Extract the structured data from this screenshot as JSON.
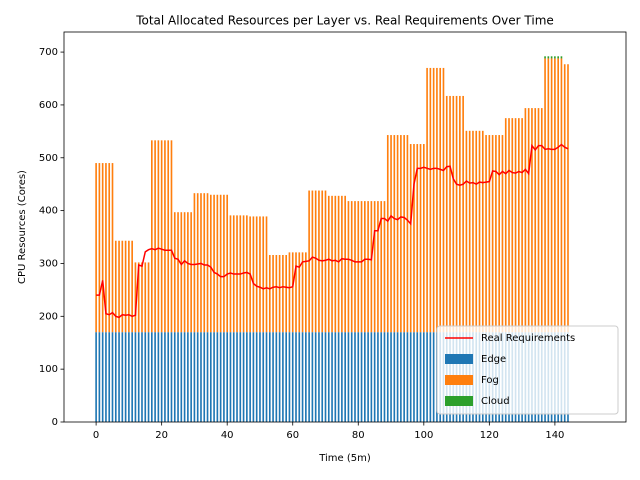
{
  "chart_data": {
    "type": "bar",
    "stacked": true,
    "title": "Total Allocated Resources per Layer vs. Real Requirements Over Time",
    "x_label": "Time (5m)",
    "y_label": "CPU Resources (Cores)",
    "xlim": [
      -9.8,
      161.7
    ],
    "ylim": [
      0,
      738
    ],
    "xticks": [
      0,
      20,
      40,
      60,
      80,
      100,
      120,
      140
    ],
    "yticks": [
      0,
      100,
      200,
      300,
      400,
      500,
      600,
      700
    ],
    "legend": "lower right",
    "x": [
      0,
      1,
      2,
      3,
      4,
      5,
      6,
      7,
      8,
      9,
      10,
      11,
      12,
      13,
      14,
      15,
      16,
      17,
      18,
      19,
      20,
      21,
      22,
      23,
      24,
      25,
      26,
      27,
      28,
      29,
      30,
      31,
      32,
      33,
      34,
      35,
      36,
      37,
      38,
      39,
      40,
      41,
      42,
      43,
      44,
      45,
      46,
      47,
      48,
      49,
      50,
      51,
      52,
      53,
      54,
      55,
      56,
      57,
      58,
      59,
      60,
      61,
      62,
      63,
      64,
      65,
      66,
      67,
      68,
      69,
      70,
      71,
      72,
      73,
      74,
      75,
      76,
      77,
      78,
      79,
      80,
      81,
      82,
      83,
      84,
      85,
      86,
      87,
      88,
      89,
      90,
      91,
      92,
      93,
      94,
      95,
      96,
      97,
      98,
      99,
      100,
      101,
      102,
      103,
      104,
      105,
      106,
      107,
      108,
      109,
      110,
      111,
      112,
      113,
      114,
      115,
      116,
      117,
      118,
      119,
      120,
      121,
      122,
      123,
      124,
      125,
      126,
      127,
      128,
      129,
      130,
      131,
      132,
      133,
      134,
      135,
      136,
      137,
      138,
      139,
      140,
      141,
      142,
      143,
      144
    ],
    "series": [
      {
        "name": "Real Requirements",
        "type": "line",
        "color": "#ff0000",
        "values": [
          240,
          240,
          268,
          205,
          203,
          207,
          200,
          198,
          203,
          202,
          203,
          200,
          202,
          297,
          295,
          322,
          326,
          328,
          326,
          329,
          327,
          325,
          325,
          325,
          310,
          308,
          298,
          305,
          300,
          298,
          298,
          299,
          300,
          297,
          297,
          293,
          283,
          280,
          275,
          275,
          280,
          282,
          280,
          280,
          280,
          282,
          283,
          280,
          262,
          257,
          255,
          252,
          254,
          252,
          255,
          256,
          254,
          256,
          255,
          254,
          256,
          295,
          293,
          303,
          304,
          305,
          312,
          310,
          306,
          305,
          306,
          308,
          305,
          306,
          303,
          309,
          308,
          308,
          306,
          303,
          303,
          303,
          308,
          308,
          307,
          362,
          362,
          385,
          385,
          380,
          390,
          385,
          383,
          388,
          387,
          382,
          375,
          450,
          480,
          480,
          482,
          480,
          478,
          480,
          480,
          478,
          476,
          483,
          484,
          460,
          450,
          448,
          450,
          456,
          452,
          453,
          450,
          454,
          453,
          454,
          455,
          475,
          474,
          468,
          474,
          470,
          476,
          472,
          471,
          474,
          472,
          478,
          470,
          523,
          515,
          523,
          523,
          516,
          517,
          516,
          516,
          520,
          525,
          520,
          517
        ]
      },
      {
        "name": "Edge",
        "type": "bar",
        "color": "#1f77b4",
        "values": [
          170,
          170,
          170,
          170,
          170,
          170,
          170,
          170,
          170,
          170,
          170,
          170,
          170,
          170,
          170,
          170,
          170,
          170,
          170,
          170,
          170,
          170,
          170,
          170,
          170,
          170,
          170,
          170,
          170,
          170,
          170,
          170,
          170,
          170,
          170,
          170,
          170,
          170,
          170,
          170,
          170,
          170,
          170,
          170,
          170,
          170,
          170,
          170,
          170,
          170,
          170,
          170,
          170,
          170,
          170,
          170,
          170,
          170,
          170,
          170,
          170,
          170,
          170,
          170,
          170,
          170,
          170,
          170,
          170,
          170,
          170,
          170,
          170,
          170,
          170,
          170,
          170,
          170,
          170,
          170,
          170,
          170,
          170,
          170,
          170,
          170,
          170,
          170,
          170,
          170,
          170,
          170,
          170,
          170,
          170,
          170,
          170,
          170,
          170,
          170,
          170,
          170,
          170,
          170,
          170,
          170,
          170,
          170,
          170,
          170,
          170,
          170,
          170,
          170,
          170,
          170,
          170,
          170,
          170,
          170,
          170,
          170,
          170,
          170,
          170,
          170,
          170,
          170,
          170,
          170,
          170,
          170,
          170,
          170,
          170,
          170,
          170,
          170,
          170,
          170,
          170,
          170,
          170,
          170,
          170
        ]
      },
      {
        "name": "Fog",
        "type": "bar",
        "color": "#ff7f0e",
        "values": [
          320,
          320,
          320,
          320,
          320,
          320,
          173,
          173,
          173,
          173,
          173,
          173,
          132,
          132,
          132,
          132,
          132,
          363,
          363,
          363,
          363,
          363,
          363,
          363,
          227,
          227,
          227,
          227,
          227,
          227,
          263,
          263,
          263,
          263,
          263,
          260,
          260,
          260,
          260,
          260,
          260,
          221,
          221,
          221,
          221,
          221,
          221,
          219,
          219,
          219,
          219,
          219,
          219,
          146,
          146,
          146,
          146,
          146,
          146,
          151,
          151,
          151,
          151,
          151,
          151,
          268,
          268,
          268,
          268,
          268,
          268,
          258,
          258,
          258,
          258,
          258,
          258,
          248,
          248,
          248,
          248,
          248,
          248,
          248,
          248,
          248,
          248,
          248,
          248,
          373,
          373,
          373,
          373,
          373,
          373,
          373,
          356,
          356,
          356,
          356,
          356,
          500,
          500,
          500,
          500,
          500,
          500,
          447,
          447,
          447,
          447,
          447,
          447,
          381,
          381,
          381,
          381,
          381,
          381,
          373,
          373,
          373,
          373,
          373,
          373,
          405,
          405,
          405,
          405,
          405,
          405,
          424,
          424,
          424,
          424,
          424,
          424,
          518,
          518,
          518,
          518,
          518,
          518,
          507,
          507
        ]
      },
      {
        "name": "Cloud",
        "type": "bar",
        "color": "#2ca02c",
        "values": [
          0,
          0,
          0,
          0,
          0,
          0,
          0,
          0,
          0,
          0,
          0,
          0,
          0,
          0,
          0,
          0,
          0,
          0,
          0,
          0,
          0,
          0,
          0,
          0,
          0,
          0,
          0,
          0,
          0,
          0,
          0,
          0,
          0,
          0,
          0,
          0,
          0,
          0,
          0,
          0,
          0,
          0,
          0,
          0,
          0,
          0,
          0,
          0,
          0,
          0,
          0,
          0,
          0,
          0,
          0,
          0,
          0,
          0,
          0,
          0,
          0,
          0,
          0,
          0,
          0,
          0,
          0,
          0,
          0,
          0,
          0,
          0,
          0,
          0,
          0,
          0,
          0,
          0,
          0,
          0,
          0,
          0,
          0,
          0,
          0,
          0,
          0,
          0,
          0,
          0,
          0,
          0,
          0,
          0,
          0,
          0,
          0,
          0,
          0,
          0,
          0,
          0,
          0,
          0,
          0,
          0,
          0,
          0,
          0,
          0,
          0,
          0,
          0,
          0,
          0,
          0,
          0,
          0,
          0,
          0,
          0,
          0,
          0,
          0,
          0,
          0,
          0,
          0,
          0,
          0,
          0,
          0,
          0,
          0,
          0,
          0,
          0,
          4,
          4,
          4,
          4,
          4,
          4,
          0,
          0
        ]
      }
    ]
  }
}
